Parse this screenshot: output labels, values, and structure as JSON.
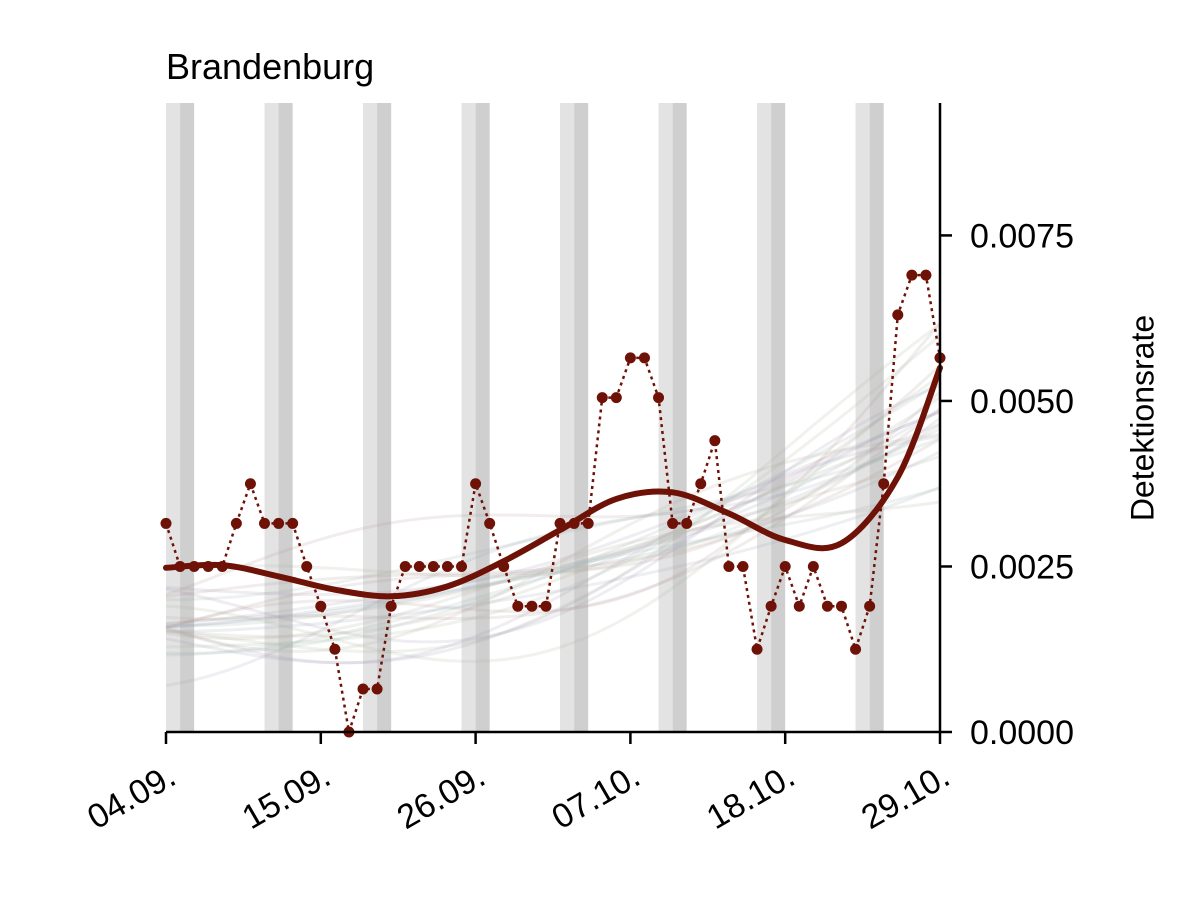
{
  "chart_data": {
    "type": "line",
    "title": "Brandenburg",
    "xlabel": "",
    "ylabel": "Detektionsrate",
    "x_ticks": [
      "04.09.",
      "15.09.",
      "26.09.",
      "07.10.",
      "18.10.",
      "29.10."
    ],
    "y_ticks": [
      "0.0000",
      "0.0025",
      "0.0050",
      "0.0075"
    ],
    "y_tick_values": [
      0.0,
      0.0025,
      0.005,
      0.0075
    ],
    "xlim": [
      "2022-09-04",
      "2022-10-29"
    ],
    "ylim": [
      0.0,
      0.0095
    ],
    "y_axis_position": "right",
    "weekend_bands": [
      [
        "2022-09-04",
        "2022-09-06"
      ],
      [
        "2022-09-11",
        "2022-09-13"
      ],
      [
        "2022-09-18",
        "2022-09-20"
      ],
      [
        "2022-09-25",
        "2022-09-27"
      ],
      [
        "2022-10-02",
        "2022-10-04"
      ],
      [
        "2022-10-09",
        "2022-10-11"
      ],
      [
        "2022-10-16",
        "2022-10-18"
      ],
      [
        "2022-10-23",
        "2022-10-25"
      ]
    ],
    "series": [
      {
        "style": "dotted-markers",
        "color": "#6e1207",
        "x": [
          "2022-09-04",
          "2022-09-05",
          "2022-09-06",
          "2022-09-07",
          "2022-09-08",
          "2022-09-09",
          "2022-09-10",
          "2022-09-11",
          "2022-09-12",
          "2022-09-13",
          "2022-09-14",
          "2022-09-15",
          "2022-09-16",
          "2022-09-17",
          "2022-09-18",
          "2022-09-19",
          "2022-09-20",
          "2022-09-21",
          "2022-09-22",
          "2022-09-23",
          "2022-09-24",
          "2022-09-25",
          "2022-09-26",
          "2022-09-27",
          "2022-09-28",
          "2022-09-29",
          "2022-09-30",
          "2022-10-01",
          "2022-10-02",
          "2022-10-03",
          "2022-10-04",
          "2022-10-05",
          "2022-10-06",
          "2022-10-07",
          "2022-10-08",
          "2022-10-09",
          "2022-10-10",
          "2022-10-11",
          "2022-10-12",
          "2022-10-13",
          "2022-10-14",
          "2022-10-15",
          "2022-10-16",
          "2022-10-17",
          "2022-10-18",
          "2022-10-19",
          "2022-10-20",
          "2022-10-21",
          "2022-10-22",
          "2022-10-23",
          "2022-10-24",
          "2022-10-25",
          "2022-10-26",
          "2022-10-27",
          "2022-10-28",
          "2022-10-29"
        ],
        "values": [
          0.00315,
          0.0025,
          0.0025,
          0.0025,
          0.0025,
          0.00315,
          0.00375,
          0.00315,
          0.00315,
          0.00315,
          0.0025,
          0.0019,
          0.00125,
          0.0,
          0.00065,
          0.00065,
          0.0019,
          0.0025,
          0.0025,
          0.0025,
          0.0025,
          0.0025,
          0.00375,
          0.00315,
          0.0025,
          0.0019,
          0.0019,
          0.0019,
          0.00315,
          0.00315,
          0.00315,
          0.00505,
          0.00505,
          0.00565,
          0.00565,
          0.00505,
          0.00315,
          0.00315,
          0.00375,
          0.0044,
          0.0025,
          0.0025,
          0.00125,
          0.0019,
          0.0025,
          0.0019,
          0.0025,
          0.0019,
          0.0019,
          0.00125,
          0.0019,
          0.00375,
          0.0063,
          0.0069,
          0.0069,
          0.00565
        ]
      },
      {
        "style": "smooth",
        "color": "#6e1207",
        "x": [
          "2022-09-04",
          "2022-09-08",
          "2022-09-12",
          "2022-09-16",
          "2022-09-20",
          "2022-09-24",
          "2022-09-28",
          "2022-10-02",
          "2022-10-06",
          "2022-10-10",
          "2022-10-14",
          "2022-10-18",
          "2022-10-22",
          "2022-10-26",
          "2022-10-29"
        ],
        "values": [
          0.00248,
          0.00252,
          0.00235,
          0.00215,
          0.00205,
          0.0022,
          0.00258,
          0.00305,
          0.00352,
          0.00362,
          0.0033,
          0.0029,
          0.00285,
          0.00385,
          0.0055
        ]
      }
    ]
  }
}
